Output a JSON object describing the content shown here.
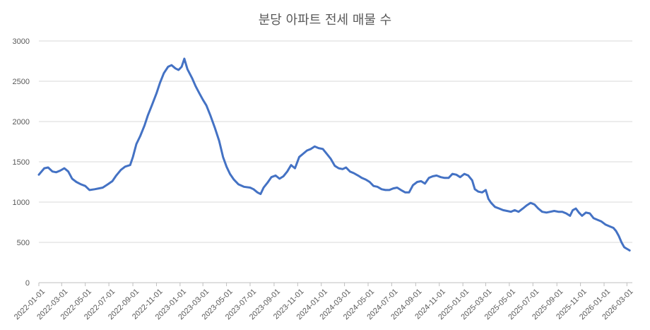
{
  "chart_data": {
    "type": "line",
    "title": "분당 아파트 전세 매물 수",
    "xlabel": "",
    "ylabel": "",
    "ylim": [
      0,
      3000
    ],
    "yticks": [
      0,
      500,
      1000,
      1500,
      2000,
      2500,
      3000
    ],
    "xlim": [
      "2022-01-01",
      "2026-03-15"
    ],
    "xticks": [
      "2022-01-01",
      "2022-03-01",
      "2022-05-01",
      "2022-07-01",
      "2022-09-01",
      "2022-11-01",
      "2023-01-01",
      "2023-03-01",
      "2023-05-01",
      "2023-07-01",
      "2023-09-01",
      "2023-11-01",
      "2024-01-01",
      "2024-03-01",
      "2024-05-01",
      "2024-07-01",
      "2024-09-01",
      "2024-11-01",
      "2025-01-01",
      "2025-03-01",
      "2025-05-01",
      "2025-07-01",
      "2025-09-01",
      "2025-11-01",
      "2026-01-01",
      "2026-03-01"
    ],
    "grid": true,
    "legend": "none",
    "series": [
      {
        "color": "#4472c4",
        "points": [
          [
            "2022-01-01",
            1340
          ],
          [
            "2022-01-15",
            1420
          ],
          [
            "2022-01-25",
            1430
          ],
          [
            "2022-02-05",
            1380
          ],
          [
            "2022-02-15",
            1370
          ],
          [
            "2022-02-25",
            1390
          ],
          [
            "2022-03-08",
            1420
          ],
          [
            "2022-03-18",
            1380
          ],
          [
            "2022-03-28",
            1290
          ],
          [
            "2022-04-08",
            1250
          ],
          [
            "2022-04-20",
            1220
          ],
          [
            "2022-05-01",
            1200
          ],
          [
            "2022-05-12",
            1150
          ],
          [
            "2022-05-25",
            1160
          ],
          [
            "2022-06-05",
            1170
          ],
          [
            "2022-06-15",
            1180
          ],
          [
            "2022-06-28",
            1220
          ],
          [
            "2022-07-10",
            1260
          ],
          [
            "2022-07-20",
            1330
          ],
          [
            "2022-08-01",
            1400
          ],
          [
            "2022-08-12",
            1440
          ],
          [
            "2022-08-25",
            1460
          ],
          [
            "2022-09-01",
            1560
          ],
          [
            "2022-09-10",
            1720
          ],
          [
            "2022-09-20",
            1820
          ],
          [
            "2022-10-01",
            1950
          ],
          [
            "2022-10-10",
            2080
          ],
          [
            "2022-10-20",
            2200
          ],
          [
            "2022-11-01",
            2350
          ],
          [
            "2022-11-10",
            2480
          ],
          [
            "2022-11-20",
            2600
          ],
          [
            "2022-12-01",
            2680
          ],
          [
            "2022-12-10",
            2700
          ],
          [
            "2022-12-20",
            2660
          ],
          [
            "2022-12-28",
            2640
          ],
          [
            "2023-01-05",
            2680
          ],
          [
            "2023-01-12",
            2780
          ],
          [
            "2023-01-20",
            2650
          ],
          [
            "2023-02-01",
            2540
          ],
          [
            "2023-02-10",
            2440
          ],
          [
            "2023-02-20",
            2350
          ],
          [
            "2023-03-01",
            2270
          ],
          [
            "2023-03-10",
            2200
          ],
          [
            "2023-03-20",
            2080
          ],
          [
            "2023-04-01",
            1920
          ],
          [
            "2023-04-12",
            1760
          ],
          [
            "2023-04-22",
            1560
          ],
          [
            "2023-05-01",
            1440
          ],
          [
            "2023-05-10",
            1350
          ],
          [
            "2023-05-20",
            1280
          ],
          [
            "2023-06-01",
            1220
          ],
          [
            "2023-06-15",
            1190
          ],
          [
            "2023-07-01",
            1180
          ],
          [
            "2023-07-10",
            1160
          ],
          [
            "2023-07-20",
            1120
          ],
          [
            "2023-07-28",
            1100
          ],
          [
            "2023-08-05",
            1180
          ],
          [
            "2023-08-15",
            1240
          ],
          [
            "2023-08-25",
            1310
          ],
          [
            "2023-09-05",
            1330
          ],
          [
            "2023-09-15",
            1290
          ],
          [
            "2023-09-25",
            1320
          ],
          [
            "2023-10-05",
            1380
          ],
          [
            "2023-10-15",
            1460
          ],
          [
            "2023-10-25",
            1420
          ],
          [
            "2023-11-05",
            1560
          ],
          [
            "2023-11-15",
            1600
          ],
          [
            "2023-11-25",
            1640
          ],
          [
            "2023-12-05",
            1660
          ],
          [
            "2023-12-15",
            1690
          ],
          [
            "2023-12-25",
            1670
          ],
          [
            "2024-01-05",
            1660
          ],
          [
            "2024-01-15",
            1600
          ],
          [
            "2024-01-25",
            1540
          ],
          [
            "2024-02-05",
            1450
          ],
          [
            "2024-02-15",
            1420
          ],
          [
            "2024-02-25",
            1410
          ],
          [
            "2024-03-05",
            1430
          ],
          [
            "2024-03-15",
            1380
          ],
          [
            "2024-03-25",
            1360
          ],
          [
            "2024-04-05",
            1330
          ],
          [
            "2024-04-15",
            1300
          ],
          [
            "2024-04-25",
            1280
          ],
          [
            "2024-05-05",
            1250
          ],
          [
            "2024-05-15",
            1200
          ],
          [
            "2024-05-25",
            1190
          ],
          [
            "2024-06-05",
            1160
          ],
          [
            "2024-06-15",
            1150
          ],
          [
            "2024-06-25",
            1150
          ],
          [
            "2024-07-05",
            1170
          ],
          [
            "2024-07-15",
            1180
          ],
          [
            "2024-07-25",
            1150
          ],
          [
            "2024-08-05",
            1120
          ],
          [
            "2024-08-15",
            1120
          ],
          [
            "2024-08-25",
            1210
          ],
          [
            "2024-09-05",
            1250
          ],
          [
            "2024-09-15",
            1260
          ],
          [
            "2024-09-25",
            1230
          ],
          [
            "2024-10-05",
            1300
          ],
          [
            "2024-10-15",
            1320
          ],
          [
            "2024-10-25",
            1330
          ],
          [
            "2024-11-05",
            1310
          ],
          [
            "2024-11-15",
            1300
          ],
          [
            "2024-11-25",
            1300
          ],
          [
            "2024-12-05",
            1350
          ],
          [
            "2024-12-15",
            1340
          ],
          [
            "2024-12-25",
            1310
          ],
          [
            "2025-01-05",
            1350
          ],
          [
            "2025-01-15",
            1330
          ],
          [
            "2025-01-25",
            1270
          ],
          [
            "2025-02-01",
            1160
          ],
          [
            "2025-02-10",
            1130
          ],
          [
            "2025-02-20",
            1120
          ],
          [
            "2025-03-01",
            1150
          ],
          [
            "2025-03-08",
            1040
          ],
          [
            "2025-03-15",
            990
          ],
          [
            "2025-03-25",
            940
          ],
          [
            "2025-04-05",
            920
          ],
          [
            "2025-04-15",
            900
          ],
          [
            "2025-04-25",
            890
          ],
          [
            "2025-05-05",
            880
          ],
          [
            "2025-05-15",
            900
          ],
          [
            "2025-05-25",
            880
          ],
          [
            "2025-06-05",
            920
          ],
          [
            "2025-06-15",
            960
          ],
          [
            "2025-06-25",
            990
          ],
          [
            "2025-07-05",
            970
          ],
          [
            "2025-07-15",
            920
          ],
          [
            "2025-07-25",
            880
          ],
          [
            "2025-08-05",
            870
          ],
          [
            "2025-08-15",
            880
          ],
          [
            "2025-08-25",
            890
          ],
          [
            "2025-09-05",
            880
          ],
          [
            "2025-09-15",
            880
          ],
          [
            "2025-09-25",
            860
          ],
          [
            "2025-10-05",
            830
          ],
          [
            "2025-10-12",
            900
          ],
          [
            "2025-10-20",
            920
          ],
          [
            "2025-10-28",
            870
          ],
          [
            "2025-11-05",
            830
          ],
          [
            "2025-11-15",
            870
          ],
          [
            "2025-11-25",
            860
          ],
          [
            "2025-12-05",
            800
          ],
          [
            "2025-12-15",
            780
          ],
          [
            "2025-12-25",
            760
          ],
          [
            "2026-01-05",
            720
          ],
          [
            "2026-01-15",
            700
          ],
          [
            "2026-01-25",
            680
          ],
          [
            "2026-02-01",
            640
          ],
          [
            "2026-02-08",
            580
          ],
          [
            "2026-02-15",
            500
          ],
          [
            "2026-02-22",
            440
          ],
          [
            "2026-03-01",
            420
          ],
          [
            "2026-03-08",
            400
          ]
        ]
      }
    ]
  }
}
